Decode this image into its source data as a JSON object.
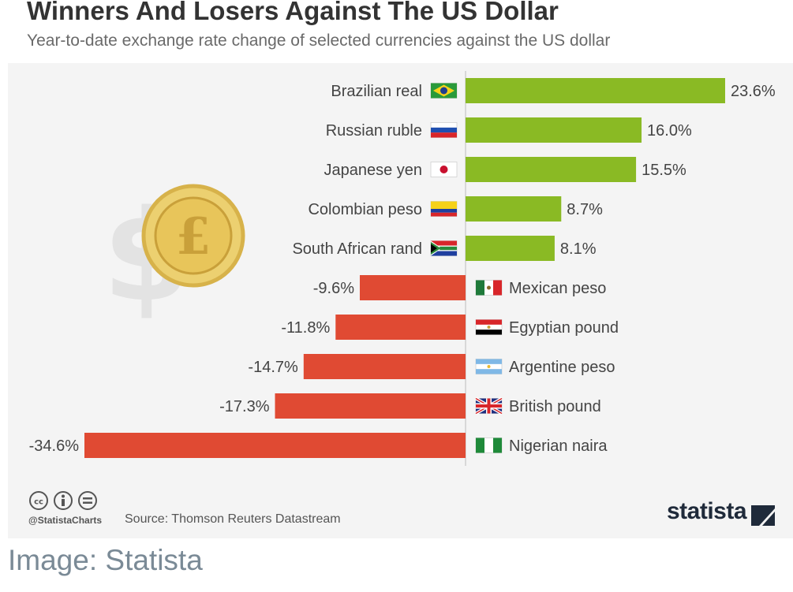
{
  "chart_data": {
    "type": "bar",
    "orientation": "horizontal",
    "title": "Winners And Losers Against The US Dollar",
    "subtitle": "Year-to-date exchange rate change of selected currencies against the US dollar",
    "categories": [
      "Brazilian real",
      "Russian ruble",
      "Japanese yen",
      "Colombian peso",
      "South African rand",
      "Mexican peso",
      "Egyptian pound",
      "Argentine peso",
      "British pound",
      "Nigerian naira"
    ],
    "values": [
      23.6,
      16.0,
      15.5,
      8.7,
      8.1,
      -9.6,
      -11.8,
      -14.7,
      -17.3,
      -34.6
    ],
    "value_labels": [
      "23.6%",
      "16.0%",
      "15.5%",
      "8.7%",
      "8.1%",
      "-9.6%",
      "-11.8%",
      "-14.7%",
      "-17.3%",
      "-34.6%"
    ],
    "flags": [
      "brazil-flag-icon",
      "russia-flag-icon",
      "japan-flag-icon",
      "colombia-flag-icon",
      "south-africa-flag-icon",
      "mexico-flag-icon",
      "egypt-flag-icon",
      "argentina-flag-icon",
      "uk-flag-icon",
      "nigeria-flag-icon"
    ],
    "xlabel": "",
    "ylabel": "",
    "xlim": [
      -34.6,
      23.6
    ],
    "grid": false,
    "colors": {
      "positive": "#8aba24",
      "negative": "#e04a33",
      "axis": "#cfcfcf"
    }
  },
  "footer": {
    "license_icons": [
      "creative-commons-icon",
      "attribution-icon",
      "no-derivatives-icon"
    ],
    "handle": "@StatistaCharts",
    "source": "Source: Thomson Reuters Datastream",
    "logo": "statista"
  },
  "caption": "Image: Statista",
  "decorations": [
    "dollar-sign-icon",
    "pound-coin-icon"
  ]
}
